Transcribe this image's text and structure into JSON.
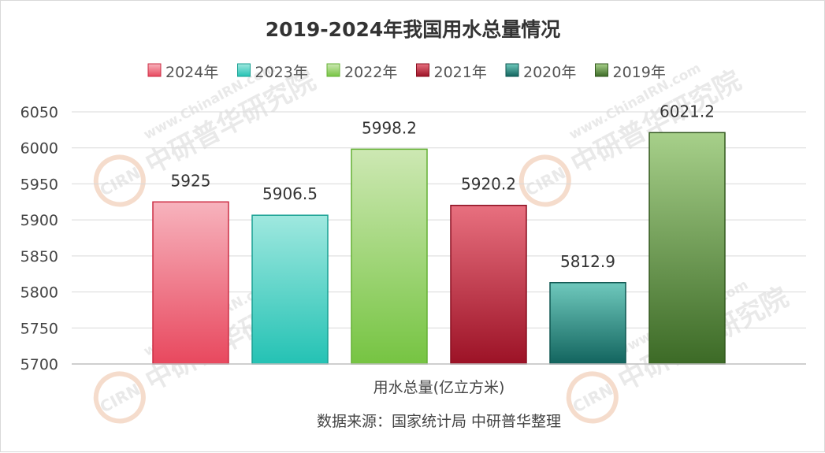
{
  "chart_data": {
    "type": "bar",
    "title": "2019-2024年我国用水总量情况",
    "categories": [
      "用水总量(亿立方米)"
    ],
    "series": [
      {
        "name": "2024年",
        "values": [
          5925
        ],
        "color": "#e8485e",
        "color_top": "#f7b3bd",
        "stroke": "#cc2e44"
      },
      {
        "name": "2023年",
        "values": [
          5906.5
        ],
        "color": "#24c2b4",
        "color_top": "#9fe8df",
        "stroke": "#1aa093"
      },
      {
        "name": "2022年",
        "values": [
          5998.2
        ],
        "color": "#76c442",
        "color_top": "#cde8b3",
        "stroke": "#64b034"
      },
      {
        "name": "2021年",
        "values": [
          5920.2
        ],
        "color": "#9c1226",
        "color_top": "#e8707f",
        "stroke": "#8a0f20"
      },
      {
        "name": "2020年",
        "values": [
          5812.9
        ],
        "color": "#12645e",
        "color_top": "#6fc9bd",
        "stroke": "#0e5650"
      },
      {
        "name": "2019年",
        "values": [
          6021.2
        ],
        "color": "#3c6a26",
        "color_top": "#a7d08a",
        "stroke": "#33591f"
      }
    ],
    "data_labels": [
      "5925",
      "5906.5",
      "5998.2",
      "5920.2",
      "5812.9",
      "6021.2"
    ],
    "ylim": [
      5700,
      6050
    ],
    "yticks": [
      5700,
      5750,
      5800,
      5850,
      5900,
      5950,
      6000,
      6050
    ],
    "xlabel": "用水总量(亿立方米)",
    "ylabel": "",
    "grid": true,
    "legend_position": "top"
  },
  "source": "数据来源：国家统计局 中研普华整理",
  "watermark": {
    "logo": "CIRN",
    "name_cn": "中研普华研究院",
    "url": "www.ChinaIRN.com"
  }
}
